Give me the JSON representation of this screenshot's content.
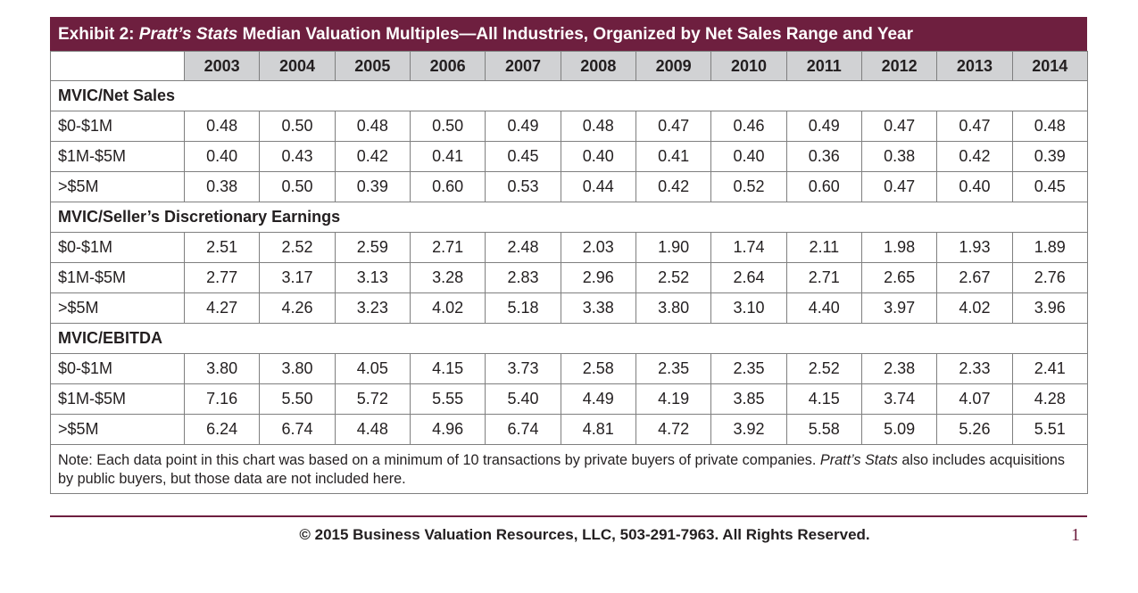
{
  "exhibit": {
    "title_prefix": "Exhibit 2: ",
    "title_italic": "Pratt’s Stats",
    "title_suffix": " Median Valuation Multiples—All Industries, Organized by Net Sales Range and Year"
  },
  "years": [
    "2003",
    "2004",
    "2005",
    "2006",
    "2007",
    "2008",
    "2009",
    "2010",
    "2011",
    "2012",
    "2013",
    "2014"
  ],
  "sections": [
    {
      "heading": "MVIC/Net Sales",
      "rows": [
        {
          "label": "$0-$1M",
          "values": [
            "0.48",
            "0.50",
            "0.48",
            "0.50",
            "0.49",
            "0.48",
            "0.47",
            "0.46",
            "0.49",
            "0.47",
            "0.47",
            "0.48"
          ]
        },
        {
          "label": "$1M-$5M",
          "values": [
            "0.40",
            "0.43",
            "0.42",
            "0.41",
            "0.45",
            "0.40",
            "0.41",
            "0.40",
            "0.36",
            "0.38",
            "0.42",
            "0.39"
          ]
        },
        {
          "label": ">$5M",
          "values": [
            "0.38",
            "0.50",
            "0.39",
            "0.60",
            "0.53",
            "0.44",
            "0.42",
            "0.52",
            "0.60",
            "0.47",
            "0.40",
            "0.45"
          ]
        }
      ]
    },
    {
      "heading": "MVIC/Seller’s Discretionary Earnings",
      "rows": [
        {
          "label": "$0-$1M",
          "values": [
            "2.51",
            "2.52",
            "2.59",
            "2.71",
            "2.48",
            "2.03",
            "1.90",
            "1.74",
            "2.11",
            "1.98",
            "1.93",
            "1.89"
          ]
        },
        {
          "label": "$1M-$5M",
          "values": [
            "2.77",
            "3.17",
            "3.13",
            "3.28",
            "2.83",
            "2.96",
            "2.52",
            "2.64",
            "2.71",
            "2.65",
            "2.67",
            "2.76"
          ]
        },
        {
          "label": ">$5M",
          "values": [
            "4.27",
            "4.26",
            "3.23",
            "4.02",
            "5.18",
            "3.38",
            "3.80",
            "3.10",
            "4.40",
            "3.97",
            "4.02",
            "3.96"
          ]
        }
      ]
    },
    {
      "heading": "MVIC/EBITDA",
      "rows": [
        {
          "label": "$0-$1M",
          "values": [
            "3.80",
            "3.80",
            "4.05",
            "4.15",
            "3.73",
            "2.58",
            "2.35",
            "2.35",
            "2.52",
            "2.38",
            "2.33",
            "2.41"
          ]
        },
        {
          "label": "$1M-$5M",
          "values": [
            "7.16",
            "5.50",
            "5.72",
            "5.55",
            "5.40",
            "4.49",
            "4.19",
            "3.85",
            "4.15",
            "3.74",
            "4.07",
            "4.28"
          ]
        },
        {
          "label": ">$5M",
          "values": [
            "6.24",
            "6.74",
            "4.48",
            "4.96",
            "6.74",
            "4.81",
            "4.72",
            "3.92",
            "5.58",
            "5.09",
            "5.26",
            "5.51"
          ]
        }
      ]
    }
  ],
  "note": {
    "prefix": "Note: Each data point in this chart was based on a minimum of 10 transactions by private buyers of private companies. ",
    "italic": "Pratt’s Stats",
    "suffix": " also includes acquisitions by public buyers, but those data are not included here."
  },
  "footer": {
    "copyright": "© 2015 Business Valuation Resources, LLC, 503-291-7963. All Rights Reserved.",
    "page_number": "1"
  },
  "colors": {
    "accent": "#6e1f3f",
    "header_gray": "#d1d2d4",
    "border": "#7f7f7f"
  }
}
